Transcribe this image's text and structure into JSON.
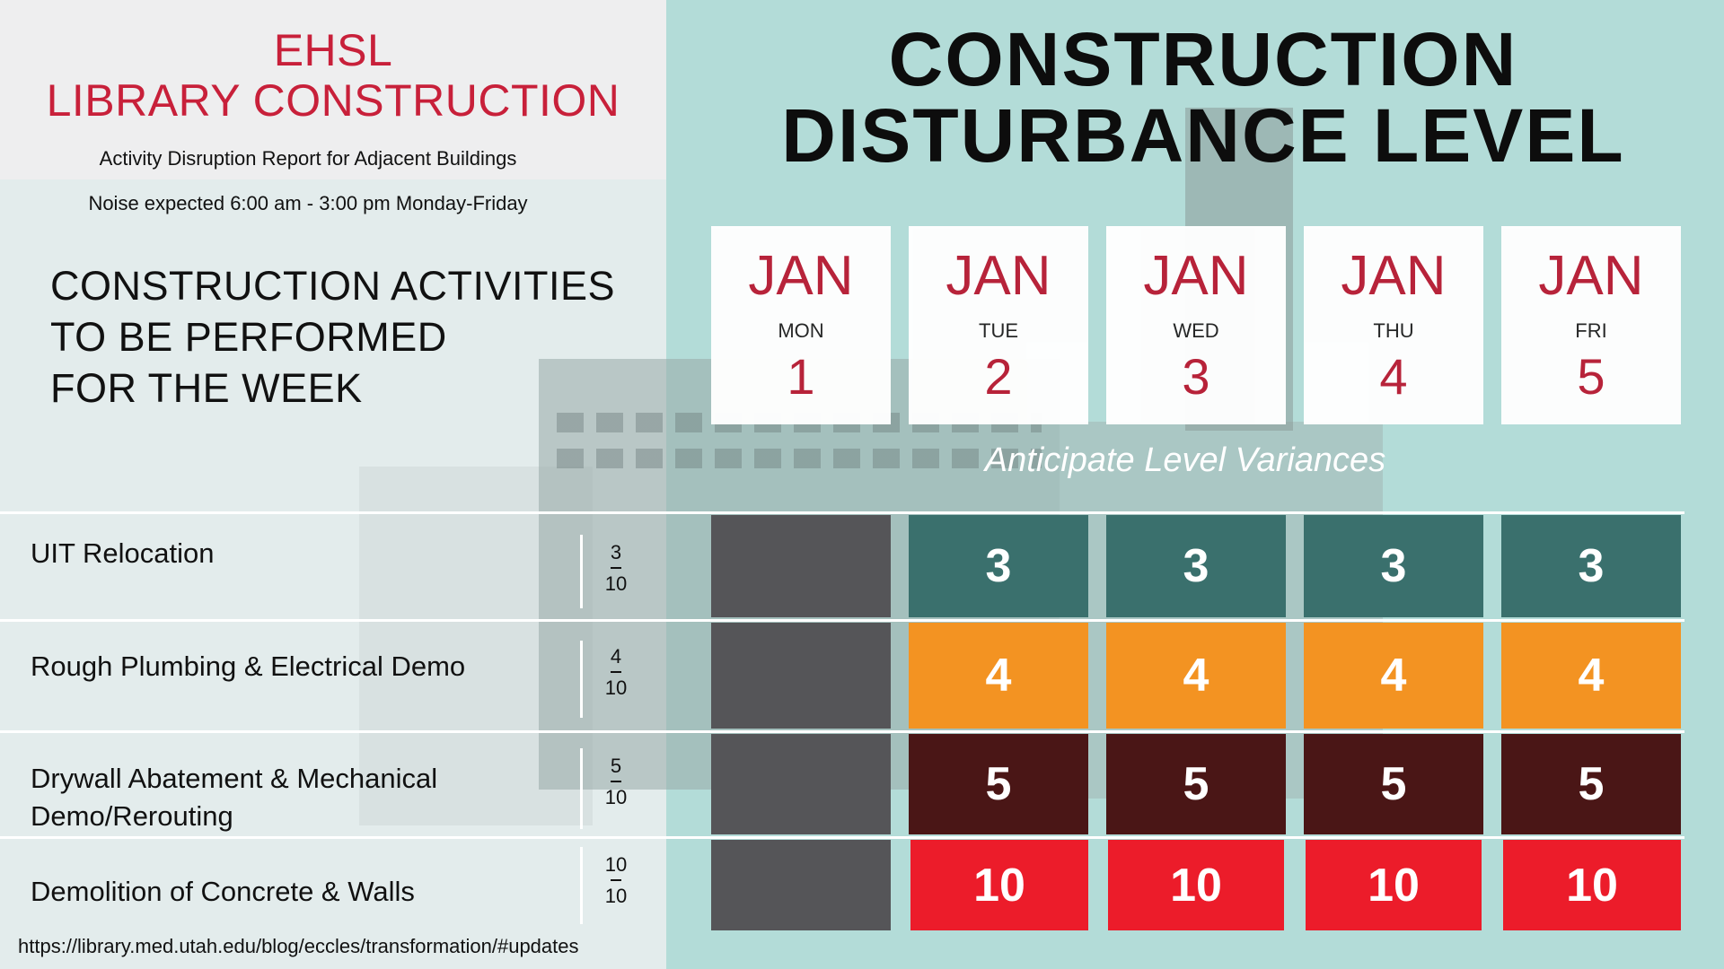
{
  "header": {
    "title_line1": "EHSL",
    "title_line2": "LIBRARY CONSTRUCTION",
    "subtitle": "Activity Disruption Report for Adjacent Buildings",
    "noise_note": "Noise expected 6:00 am - 3:00 pm Monday-Friday",
    "activities_heading_line1": "CONSTRUCTION ACTIVITIES",
    "activities_heading_line2": "TO BE PERFORMED",
    "activities_heading_line3": "FOR THE WEEK"
  },
  "main_title": {
    "line1": "CONSTRUCTION",
    "line2": "DISTURBANCE LEVEL"
  },
  "days": [
    {
      "month": "JAN",
      "weekday": "MON",
      "number": "1"
    },
    {
      "month": "JAN",
      "weekday": "TUE",
      "number": "2"
    },
    {
      "month": "JAN",
      "weekday": "WED",
      "number": "3"
    },
    {
      "month": "JAN",
      "weekday": "THU",
      "number": "4"
    },
    {
      "month": "JAN",
      "weekday": "FRI",
      "number": "5"
    }
  ],
  "anticipate_note": "Anticipate Level Variances",
  "activities": [
    {
      "label_line1": "UIT Relocation",
      "label_line2": "",
      "level": "3",
      "scale": "10",
      "color": "#3a706d",
      "cells": [
        "",
        "3",
        "3",
        "3",
        "3"
      ]
    },
    {
      "label_line1": "Rough Plumbing & Electrical Demo",
      "label_line2": "",
      "level": "4",
      "scale": "10",
      "color": "#f39322",
      "cells": [
        "",
        "4",
        "4",
        "4",
        "4"
      ]
    },
    {
      "label_line1": "Drywall Abatement & Mechanical",
      "label_line2": "Demo/Rerouting",
      "level": "5",
      "scale": "10",
      "color": "#4a1616",
      "cells": [
        "",
        "5",
        "5",
        "5",
        "5"
      ]
    },
    {
      "label_line1": "Demolition of Concrete & Walls",
      "label_line2": "",
      "level": "10",
      "scale": "10",
      "color": "#ec1c2a",
      "cells": [
        "",
        "10",
        "10",
        "10",
        "10"
      ]
    }
  ],
  "empty_cell_color": "#555558",
  "footer_url": "https://library.med.utah.edu/blog/eccles/transformation/#updates"
}
